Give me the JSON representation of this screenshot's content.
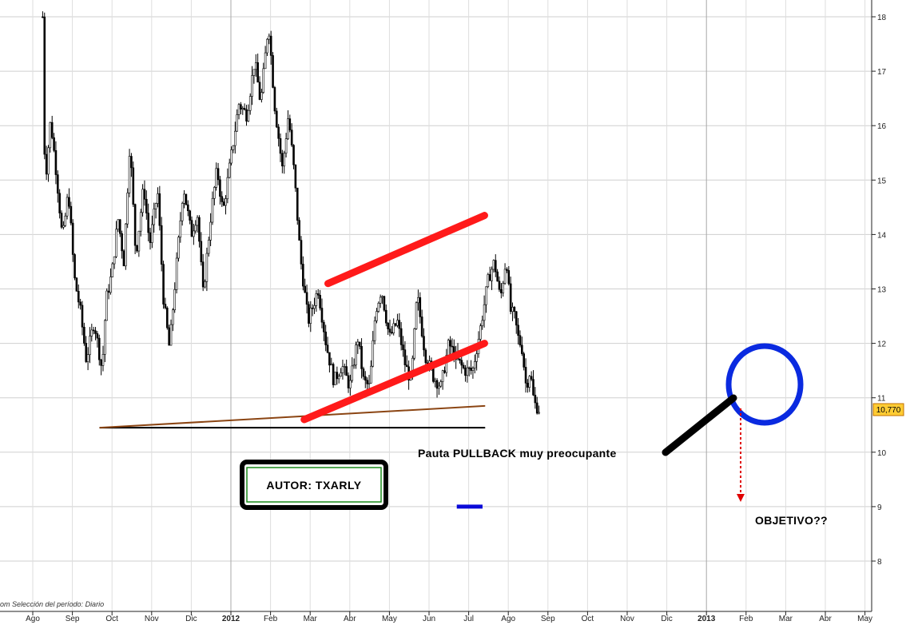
{
  "chart_data": {
    "type": "candlestick",
    "title": "",
    "xlabel": "",
    "ylabel": "",
    "ylim": [
      7.3,
      18.2
    ],
    "y_ticks": [
      8,
      9,
      10,
      11,
      12,
      13,
      14,
      15,
      16,
      17,
      18
    ],
    "x_ticks": [
      {
        "label": "Ago",
        "bold": false
      },
      {
        "label": "Sep",
        "bold": false
      },
      {
        "label": "Oct",
        "bold": false
      },
      {
        "label": "Nov",
        "bold": false
      },
      {
        "label": "Dic",
        "bold": false
      },
      {
        "label": "2012",
        "bold": true
      },
      {
        "label": "Feb",
        "bold": false
      },
      {
        "label": "Mar",
        "bold": false
      },
      {
        "label": "Abr",
        "bold": false
      },
      {
        "label": "May",
        "bold": false
      },
      {
        "label": "Jun",
        "bold": false
      },
      {
        "label": "Jul",
        "bold": false
      },
      {
        "label": "Ago",
        "bold": false
      },
      {
        "label": "Sep",
        "bold": false
      },
      {
        "label": "Oct",
        "bold": false
      },
      {
        "label": "Nov",
        "bold": false
      },
      {
        "label": "Dic",
        "bold": false
      },
      {
        "label": "2013",
        "bold": true
      },
      {
        "label": "Feb",
        "bold": false
      },
      {
        "label": "Mar",
        "bold": false
      },
      {
        "label": "Abr",
        "bold": false
      },
      {
        "label": "May",
        "bold": false
      }
    ],
    "x_ticks_month_index": [
      0,
      1,
      2,
      3,
      4,
      5,
      6,
      7,
      8,
      9,
      10,
      11,
      12,
      13,
      14,
      15,
      16,
      17,
      18,
      19,
      20,
      21
    ],
    "grid": true,
    "current_price": "10,770",
    "price_path": [
      [
        0.25,
        18.0
      ],
      [
        0.27,
        16.2
      ],
      [
        0.32,
        15.0
      ],
      [
        0.45,
        16.1
      ],
      [
        0.6,
        15.1
      ],
      [
        0.75,
        13.9
      ],
      [
        0.9,
        14.8
      ],
      [
        1.05,
        13.2
      ],
      [
        1.2,
        12.6
      ],
      [
        1.35,
        11.7
      ],
      [
        1.55,
        12.4
      ],
      [
        1.75,
        11.5
      ],
      [
        1.85,
        12.8
      ],
      [
        2.0,
        13.3
      ],
      [
        2.15,
        14.3
      ],
      [
        2.3,
        13.5
      ],
      [
        2.45,
        15.7
      ],
      [
        2.6,
        13.6
      ],
      [
        2.8,
        14.9
      ],
      [
        2.95,
        13.8
      ],
      [
        3.15,
        14.8
      ],
      [
        3.3,
        12.8
      ],
      [
        3.45,
        11.9
      ],
      [
        3.6,
        13.2
      ],
      [
        3.8,
        14.9
      ],
      [
        4.0,
        14.0
      ],
      [
        4.15,
        14.4
      ],
      [
        4.3,
        12.9
      ],
      [
        4.5,
        14.4
      ],
      [
        4.65,
        15.2
      ],
      [
        4.8,
        14.4
      ],
      [
        5.0,
        15.4
      ],
      [
        5.2,
        16.4
      ],
      [
        5.4,
        16.2
      ],
      [
        5.6,
        17.2
      ],
      [
        5.75,
        16.4
      ],
      [
        5.95,
        17.9
      ],
      [
        6.1,
        16.4
      ],
      [
        6.3,
        15.2
      ],
      [
        6.45,
        16.2
      ],
      [
        6.6,
        15.1
      ],
      [
        6.75,
        13.6
      ],
      [
        6.95,
        12.4
      ],
      [
        7.2,
        13.0
      ],
      [
        7.4,
        12.0
      ],
      [
        7.6,
        11.3
      ],
      [
        7.8,
        11.6
      ],
      [
        8.0,
        11.2
      ],
      [
        8.2,
        12.1
      ],
      [
        8.35,
        11.3
      ],
      [
        8.5,
        11.2
      ],
      [
        8.65,
        12.6
      ],
      [
        8.8,
        13.0
      ],
      [
        9.0,
        12.1
      ],
      [
        9.2,
        12.4
      ],
      [
        9.4,
        11.6
      ],
      [
        9.55,
        11.3
      ],
      [
        9.7,
        12.9
      ],
      [
        9.9,
        11.8
      ],
      [
        10.1,
        11.4
      ],
      [
        10.3,
        11.2
      ],
      [
        10.5,
        12.0
      ],
      [
        10.7,
        11.7
      ],
      [
        10.9,
        11.5
      ],
      [
        11.1,
        11.5
      ],
      [
        11.3,
        12.3
      ],
      [
        11.5,
        13.2
      ],
      [
        11.65,
        13.5
      ],
      [
        11.8,
        12.8
      ],
      [
        11.95,
        13.6
      ],
      [
        12.05,
        12.6
      ],
      [
        12.15,
        12.5
      ],
      [
        12.25,
        12.1
      ],
      [
        12.35,
        11.9
      ],
      [
        12.45,
        11.2
      ],
      [
        12.55,
        11.5
      ],
      [
        12.65,
        10.9
      ],
      [
        12.8,
        10.77
      ]
    ],
    "annotations": {
      "pullback_text": "Pauta PULLBACK muy preocupante",
      "target_text": "OBJETIVO??",
      "author_text": "AUTOR: TXARLY",
      "period_note": "om  Selección del período: Diario"
    },
    "overlays": {
      "channel_upper": {
        "color": "#ff1a1a",
        "from": [
          7.45,
          13.1
        ],
        "to": [
          11.4,
          14.35
        ]
      },
      "channel_lower": {
        "color": "#ff1a1a",
        "from": [
          6.85,
          10.6
        ],
        "to": [
          11.4,
          12.0
        ]
      },
      "support_brown": {
        "color": "#8b4513",
        "from": [
          1.7,
          10.45
        ],
        "to": [
          11.4,
          10.85
        ]
      },
      "support_black": {
        "color": "#000000",
        "from": [
          1.7,
          10.45
        ],
        "to": [
          11.4,
          10.45
        ]
      },
      "target_line": {
        "color": "#0a0ad8",
        "from": [
          10.7,
          9.0
        ],
        "to": [
          11.35,
          9.0
        ]
      },
      "circle_color": "#0a2ae0",
      "arrow_color": "#ff0000"
    }
  }
}
